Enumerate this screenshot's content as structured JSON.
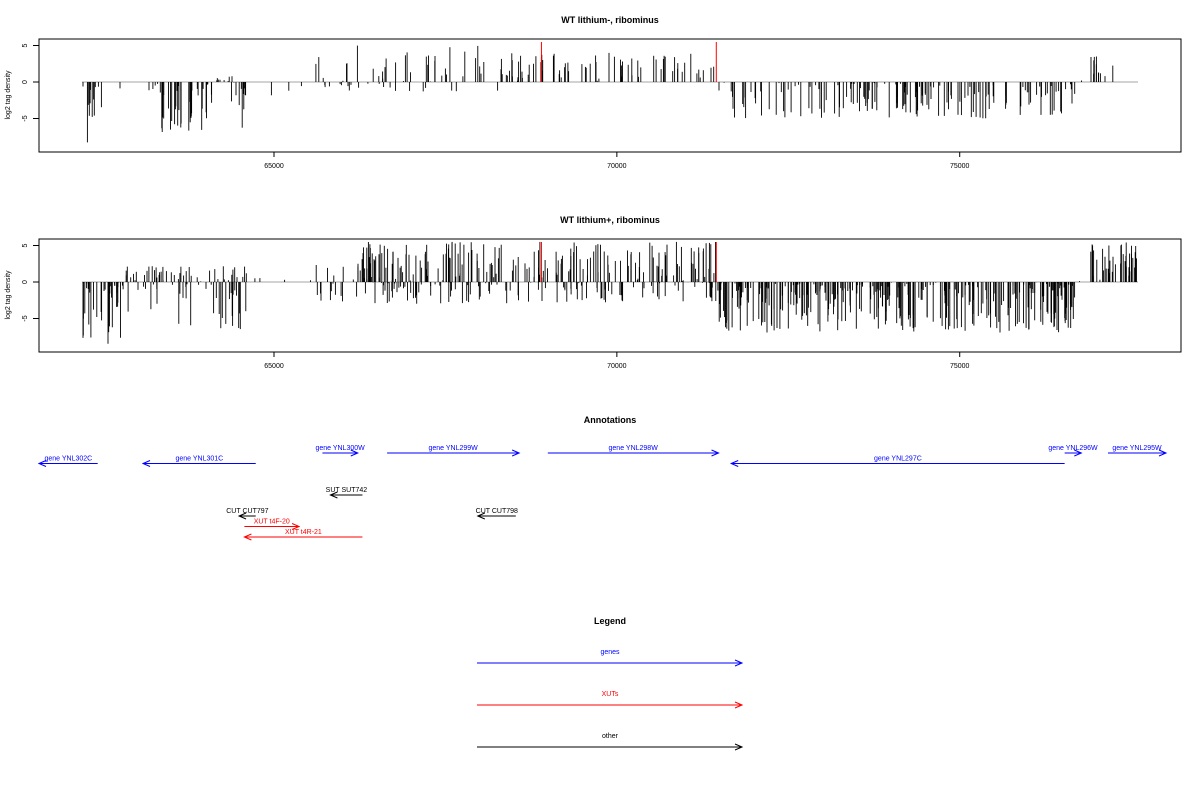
{
  "colors": {
    "genes": "#0000ff",
    "xuts": "#ff0000",
    "other": "#000000",
    "signal": "#000000",
    "marker": "#ff0000"
  },
  "chart_data": [
    {
      "type": "bar",
      "title": "WT lithium-, ribominus",
      "ylabel": "log2 tag density",
      "xlim": [
        61300,
        77950
      ],
      "ylim": [
        -9,
        5
      ],
      "xticks": [
        65000,
        70000,
        75000
      ],
      "yticks": [
        -5,
        0,
        5
      ],
      "marker_lines": [
        68900,
        71450
      ],
      "segments": [
        {
          "start": 62200,
          "end": 62500,
          "min": -8.5,
          "max": 0,
          "density": 0.6
        },
        {
          "start": 62500,
          "end": 63300,
          "min": -1.2,
          "max": 0,
          "density": 0.08
        },
        {
          "start": 63300,
          "end": 64100,
          "min": -7,
          "max": 0,
          "density": 0.7
        },
        {
          "start": 64100,
          "end": 64450,
          "min": -3.5,
          "max": 0.8,
          "density": 0.45
        },
        {
          "start": 64450,
          "end": 64600,
          "min": -7.5,
          "max": 0,
          "density": 0.8
        },
        {
          "start": 64600,
          "end": 65600,
          "min": -2,
          "max": 0,
          "density": 0.04
        },
        {
          "start": 65600,
          "end": 68300,
          "min": -1.5,
          "max": 5,
          "density": 0.3
        },
        {
          "start": 68300,
          "end": 71450,
          "min": 0,
          "max": 4,
          "density": 0.35
        },
        {
          "start": 71450,
          "end": 76700,
          "min": -5,
          "max": 0,
          "density": 0.45
        },
        {
          "start": 76700,
          "end": 76900,
          "min": 0,
          "max": 0.3,
          "density": 0.02
        },
        {
          "start": 76900,
          "end": 77050,
          "min": 0,
          "max": 3.5,
          "density": 0.8
        },
        {
          "start": 77050,
          "end": 77600,
          "min": 0,
          "max": 2.5,
          "density": 0.08
        }
      ]
    },
    {
      "type": "bar",
      "title": "WT lithium+, ribominus",
      "ylabel": "log2 tag density",
      "xlim": [
        61300,
        77950
      ],
      "ylim": [
        -9,
        5
      ],
      "xticks": [
        65000,
        70000,
        75000
      ],
      "yticks": [
        -5,
        0,
        5
      ],
      "marker_lines": [
        68900,
        71450
      ],
      "segments": [
        {
          "start": 62200,
          "end": 62800,
          "min": -8.5,
          "max": 0.3,
          "density": 0.9
        },
        {
          "start": 62800,
          "end": 64600,
          "min": -6.5,
          "max": 2.2,
          "density": 0.7
        },
        {
          "start": 64600,
          "end": 65600,
          "min": -1.5,
          "max": 1,
          "density": 0.06
        },
        {
          "start": 65600,
          "end": 66200,
          "min": -3.5,
          "max": 2.5,
          "density": 0.35
        },
        {
          "start": 66200,
          "end": 71450,
          "min": -3,
          "max": 5.5,
          "density": 0.85
        },
        {
          "start": 71450,
          "end": 76700,
          "min": -7,
          "max": 0,
          "density": 0.95
        },
        {
          "start": 76700,
          "end": 76900,
          "min": 0,
          "max": 0.3,
          "density": 0.02
        },
        {
          "start": 76900,
          "end": 77600,
          "min": 0,
          "max": 5.5,
          "density": 0.8
        }
      ]
    }
  ],
  "annotations": {
    "title": "Annotations",
    "features": [
      {
        "label": "gene YNL302C",
        "type": "gene",
        "start": 61300,
        "end": 62180,
        "strand": "-",
        "row": 1
      },
      {
        "label": "gene YNL301C",
        "type": "gene",
        "start": 62860,
        "end": 64550,
        "strand": "-",
        "row": 1
      },
      {
        "label": "gene YNL300W",
        "type": "gene",
        "start": 65550,
        "end": 66080,
        "strand": "+",
        "row": 0
      },
      {
        "label": "gene YNL299W",
        "type": "gene",
        "start": 66520,
        "end": 68500,
        "strand": "+",
        "row": 0
      },
      {
        "label": "gene YNL298W",
        "type": "gene",
        "start": 68930,
        "end": 71490,
        "strand": "+",
        "row": 0
      },
      {
        "label": "gene YNL297C",
        "type": "gene",
        "start": 71680,
        "end": 76680,
        "strand": "-",
        "row": 1
      },
      {
        "label": "gene YNL296W",
        "type": "gene",
        "start": 76680,
        "end": 76930,
        "strand": "+",
        "row": 0
      },
      {
        "label": "gene YNL295W",
        "type": "gene",
        "start": 77330,
        "end": 78200,
        "strand": "+",
        "row": 0
      },
      {
        "label": "SUT SUT742",
        "type": "other",
        "start": 65670,
        "end": 66150,
        "strand": "-",
        "row": 4
      },
      {
        "label": "CUT CUT797",
        "type": "other",
        "start": 64300,
        "end": 64550,
        "strand": "-",
        "row": 6
      },
      {
        "label": "CUT CUT798",
        "type": "other",
        "start": 67880,
        "end": 68450,
        "strand": "-",
        "row": 6
      },
      {
        "label": "XUT t4F-20",
        "type": "xut",
        "start": 64380,
        "end": 65200,
        "strand": "+",
        "row": 7
      },
      {
        "label": "XUT t4R-21",
        "type": "xut",
        "start": 64380,
        "end": 66150,
        "strand": "-",
        "row": 8
      }
    ]
  },
  "legend": {
    "title": "Legend",
    "items": [
      {
        "label": "genes",
        "type": "gene"
      },
      {
        "label": "XUTs",
        "type": "xut"
      },
      {
        "label": "other",
        "type": "other"
      }
    ]
  }
}
